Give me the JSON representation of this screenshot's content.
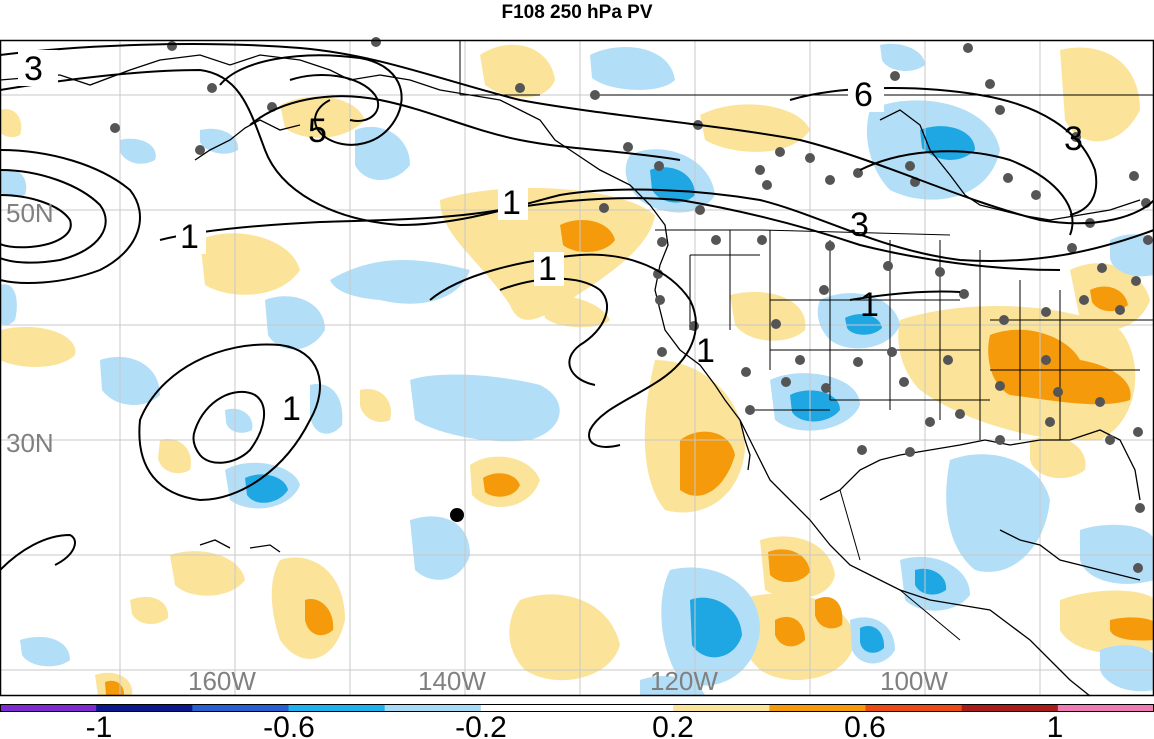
{
  "title": "F108 250 hPa PV",
  "colors": {
    "pos_light": "#fbe49a",
    "pos_mid": "#f59b0b",
    "pos_strong": "#ee4a16",
    "neg_light": "#b2dff7",
    "neg_mid": "#1fa7e3",
    "neg_strong": "#3452c3",
    "grid": "#c8c8c8",
    "latlon_label": "#808080",
    "station_dot": "#555555"
  },
  "map": {
    "lat_labels": [
      "50N",
      "30N"
    ],
    "lon_labels": [
      "160W",
      "140W",
      "120W",
      "100W"
    ],
    "contour_labels": [
      "3",
      "5",
      "1",
      "1",
      "1",
      "1",
      "6",
      "3",
      "3",
      "1",
      "1"
    ]
  },
  "colorbar": {
    "labels": [
      "-1",
      "-0.6",
      "-0.2",
      "0.2",
      "0.6",
      "1"
    ],
    "segments": [
      "#7d2ccf",
      "#0a1a8a",
      "#2a5fcf",
      "#1fb0ee",
      "#a8daf6",
      "#ffffff",
      "#ffffff",
      "#fbe49a",
      "#f59b0b",
      "#ee4a16",
      "#a81c1c",
      "#f07bb4"
    ]
  }
}
